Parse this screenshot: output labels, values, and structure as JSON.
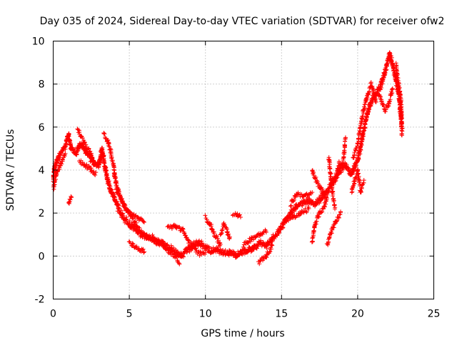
{
  "chart_data": {
    "type": "scatter",
    "title": "Day 035 of 2024, Sidereal Day-to-day VTEC variation (SDTVAR) for receiver ofw2",
    "xlabel": "GPS time / hours",
    "ylabel": "SDTVAR / TECUs",
    "xlim": [
      0,
      25
    ],
    "ylim": [
      -2,
      10
    ],
    "xticks": [
      0,
      5,
      10,
      15,
      20,
      25
    ],
    "yticks": [
      -2,
      0,
      2,
      4,
      6,
      8,
      10
    ],
    "grid": true,
    "marker": "plus",
    "series": [
      {
        "name": "SDTVAR",
        "color": "#ff0000",
        "trace": [
          [
            0.0,
            3.5
          ],
          [
            0.1,
            4.2
          ],
          [
            0.3,
            4.5
          ],
          [
            0.5,
            4.8
          ],
          [
            0.8,
            5.1
          ],
          [
            1.0,
            5.6
          ],
          [
            1.2,
            5.0
          ],
          [
            1.5,
            4.8
          ],
          [
            1.8,
            5.2
          ],
          [
            2.1,
            4.9
          ],
          [
            2.4,
            4.6
          ],
          [
            2.7,
            4.3
          ],
          [
            3.0,
            4.2
          ],
          [
            3.2,
            5.0
          ],
          [
            3.4,
            4.1
          ],
          [
            3.6,
            3.5
          ],
          [
            3.8,
            3.0
          ],
          [
            4.0,
            2.7
          ],
          [
            4.3,
            2.2
          ],
          [
            4.6,
            1.8
          ],
          [
            5.0,
            1.5
          ],
          [
            5.3,
            1.3
          ],
          [
            5.6,
            1.1
          ],
          [
            6.0,
            0.9
          ],
          [
            6.4,
            0.8
          ],
          [
            6.8,
            0.7
          ],
          [
            7.2,
            0.6
          ],
          [
            7.6,
            0.4
          ],
          [
            8.0,
            0.2
          ],
          [
            8.4,
            0.0
          ],
          [
            8.8,
            0.3
          ],
          [
            9.2,
            0.5
          ],
          [
            9.6,
            0.6
          ],
          [
            10.0,
            0.4
          ],
          [
            10.4,
            0.2
          ],
          [
            10.8,
            0.3
          ],
          [
            11.2,
            0.1
          ],
          [
            11.6,
            0.2
          ],
          [
            12.0,
            0.0
          ],
          [
            12.4,
            0.2
          ],
          [
            12.8,
            0.3
          ],
          [
            13.2,
            0.4
          ],
          [
            13.6,
            0.6
          ],
          [
            14.0,
            0.5
          ],
          [
            14.4,
            0.8
          ],
          [
            14.8,
            1.1
          ],
          [
            15.2,
            1.6
          ],
          [
            15.6,
            2.0
          ],
          [
            16.0,
            2.3
          ],
          [
            16.4,
            2.5
          ],
          [
            16.8,
            2.6
          ],
          [
            17.2,
            2.4
          ],
          [
            17.6,
            2.7
          ],
          [
            18.0,
            3.0
          ],
          [
            18.4,
            3.5
          ],
          [
            18.8,
            3.9
          ],
          [
            19.2,
            4.2
          ],
          [
            19.6,
            3.8
          ],
          [
            20.0,
            4.5
          ],
          [
            20.3,
            5.5
          ],
          [
            20.6,
            6.5
          ],
          [
            20.9,
            7.2
          ],
          [
            21.2,
            7.6
          ],
          [
            21.5,
            7.9
          ],
          [
            21.8,
            8.6
          ],
          [
            22.1,
            9.4
          ],
          [
            22.4,
            8.6
          ],
          [
            22.7,
            7.6
          ],
          [
            22.9,
            6.0
          ]
        ],
        "branches": [
          [
            [
              0.0,
              3.0
            ],
            [
              0.2,
              3.8
            ],
            [
              0.5,
              4.3
            ],
            [
              0.8,
              4.7
            ]
          ],
          [
            [
              1.0,
              2.4
            ],
            [
              1.2,
              2.8
            ]
          ],
          [
            [
              1.6,
              5.9
            ],
            [
              1.8,
              5.6
            ],
            [
              2.0,
              5.3
            ],
            [
              2.5,
              4.7
            ],
            [
              2.7,
              4.2
            ]
          ],
          [
            [
              1.7,
              4.4
            ],
            [
              2.0,
              4.3
            ],
            [
              2.5,
              4.0
            ],
            [
              2.8,
              3.8
            ]
          ],
          [
            [
              3.3,
              5.7
            ],
            [
              3.6,
              5.3
            ],
            [
              3.8,
              4.8
            ],
            [
              4.0,
              4.0
            ],
            [
              4.2,
              3.0
            ],
            [
              4.5,
              2.6
            ],
            [
              4.8,
              2.2
            ],
            [
              5.2,
              1.8
            ],
            [
              5.5,
              1.4
            ],
            [
              5.8,
              1.1
            ],
            [
              6.2,
              0.9
            ],
            [
              6.6,
              0.7
            ],
            [
              7.0,
              0.6
            ]
          ],
          [
            [
              4.0,
              3.8
            ],
            [
              4.3,
              3.0
            ],
            [
              4.6,
              2.4
            ],
            [
              5.0,
              2.0
            ],
            [
              5.5,
              1.8
            ],
            [
              6.0,
              1.6
            ]
          ],
          [
            [
              5.0,
              0.6
            ],
            [
              5.5,
              0.4
            ],
            [
              6.0,
              0.2
            ]
          ],
          [
            [
              6.5,
              0.9
            ],
            [
              7.0,
              0.6
            ],
            [
              7.5,
              0.3
            ],
            [
              8.0,
              0.0
            ],
            [
              8.3,
              -0.3
            ]
          ],
          [
            [
              7.5,
              1.3
            ],
            [
              8.0,
              1.4
            ],
            [
              8.5,
              1.2
            ],
            [
              8.8,
              0.8
            ],
            [
              9.2,
              0.4
            ],
            [
              9.6,
              0.1
            ],
            [
              10.0,
              0.2
            ]
          ],
          [
            [
              10.0,
              1.8
            ],
            [
              10.3,
              1.5
            ],
            [
              10.6,
              1.0
            ],
            [
              11.0,
              0.5
            ]
          ],
          [
            [
              11.0,
              1.0
            ],
            [
              11.2,
              1.5
            ],
            [
              11.4,
              1.2
            ],
            [
              11.6,
              0.8
            ]
          ],
          [
            [
              11.8,
              1.9
            ],
            [
              12.0,
              2.0
            ],
            [
              12.3,
              1.8
            ]
          ],
          [
            [
              12.5,
              0.5
            ],
            [
              13.0,
              0.8
            ],
            [
              13.5,
              1.0
            ],
            [
              14.0,
              1.2
            ]
          ],
          [
            [
              13.5,
              -0.3
            ],
            [
              14.0,
              0.0
            ],
            [
              14.4,
              0.5
            ]
          ],
          [
            [
              15.3,
              1.7
            ],
            [
              15.8,
              1.8
            ],
            [
              16.3,
              2.0
            ],
            [
              16.8,
              2.2
            ]
          ],
          [
            [
              15.6,
              2.4
            ],
            [
              16.0,
              2.9
            ],
            [
              16.6,
              2.8
            ],
            [
              17.0,
              2.9
            ]
          ],
          [
            [
              17.0,
              0.6
            ],
            [
              17.2,
              1.5
            ],
            [
              17.5,
              2.0
            ],
            [
              17.8,
              2.3
            ],
            [
              18.0,
              2.8
            ]
          ],
          [
            [
              17.0,
              4.0
            ],
            [
              17.3,
              3.5
            ],
            [
              17.6,
              3.1
            ],
            [
              17.9,
              2.8
            ]
          ],
          [
            [
              18.0,
              0.5
            ],
            [
              18.3,
              1.2
            ],
            [
              18.6,
              1.6
            ],
            [
              18.9,
              2.0
            ]
          ],
          [
            [
              18.1,
              4.6
            ],
            [
              18.3,
              3.2
            ],
            [
              18.5,
              2.2
            ]
          ],
          [
            [
              18.5,
              3.5
            ],
            [
              18.8,
              4.3
            ],
            [
              19.0,
              4.1
            ],
            [
              19.2,
              5.5
            ]
          ],
          [
            [
              19.6,
              3.0
            ],
            [
              19.8,
              3.5
            ],
            [
              20.0,
              4.0
            ],
            [
              20.2,
              3.0
            ],
            [
              20.4,
              3.5
            ]
          ],
          [
            [
              19.7,
              4.6
            ],
            [
              20.0,
              5.2
            ],
            [
              20.3,
              6.5
            ],
            [
              20.6,
              7.4
            ],
            [
              20.9,
              8.0
            ],
            [
              21.2,
              7.1
            ]
          ],
          [
            [
              21.2,
              7.5
            ],
            [
              21.5,
              7.4
            ],
            [
              21.8,
              6.8
            ],
            [
              22.0,
              7.0
            ],
            [
              22.3,
              7.8
            ]
          ],
          [
            [
              22.5,
              9.0
            ],
            [
              22.6,
              8.4
            ],
            [
              22.8,
              7.5
            ],
            [
              22.9,
              6.5
            ],
            [
              22.9,
              5.6
            ]
          ]
        ]
      }
    ]
  }
}
